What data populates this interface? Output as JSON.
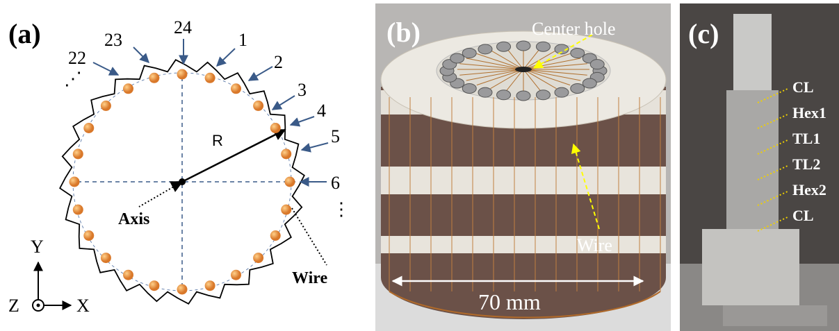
{
  "panel_a": {
    "label": "(a)",
    "wire_numbers": [
      "24",
      "1",
      "2",
      "3",
      "4",
      "5",
      "6",
      "23",
      "22"
    ],
    "ellipses": [
      "⋰",
      "⋮"
    ],
    "radius_label": "R",
    "axis_label": "Axis",
    "wire_label": "Wire",
    "coordinate_axes": [
      "Y",
      "Z",
      "X"
    ]
  },
  "panel_b": {
    "label": "(b)",
    "center_hole_label": "Center hole",
    "wire_label": "Wire",
    "dimension_label": "70 mm"
  },
  "panel_c": {
    "label": "(c)",
    "component_labels": [
      "CL",
      "Hex1",
      "TL1",
      "TL2",
      "Hex2",
      "CL"
    ]
  }
}
